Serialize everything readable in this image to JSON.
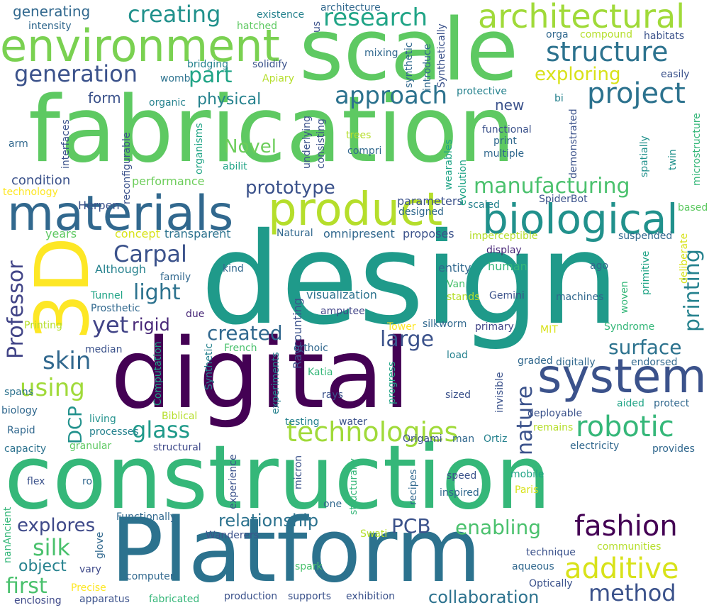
{
  "words": [
    {
      "text": "design",
      "color": "#1f9a8a"
    },
    {
      "text": "fabrication",
      "color": "#5ec962"
    },
    {
      "text": "construction",
      "color": "#35b779"
    },
    {
      "text": "digital",
      "color": "#440154"
    },
    {
      "text": "Platform",
      "color": "#2c728e"
    },
    {
      "text": "scale",
      "color": "#5ec962"
    },
    {
      "text": "environment",
      "color": "#7ad151"
    },
    {
      "text": "materials",
      "color": "#31688e"
    },
    {
      "text": "3D",
      "color": "#fde725"
    },
    {
      "text": "product",
      "color": "#b5de2b"
    },
    {
      "text": "system",
      "color": "#3b528b"
    },
    {
      "text": "biological",
      "color": "#21918c"
    },
    {
      "text": "architectural",
      "color": "#a0da39"
    },
    {
      "text": "technologies",
      "color": "#a0da39"
    },
    {
      "text": "robotic",
      "color": "#35b779"
    },
    {
      "text": "fashion",
      "color": "#440154"
    },
    {
      "text": "additive",
      "color": "#d8e219"
    },
    {
      "text": "structure",
      "color": "#2c728e"
    },
    {
      "text": "project",
      "color": "#2c728e"
    },
    {
      "text": "research",
      "color": "#20a486"
    },
    {
      "text": "approach",
      "color": "#2c728e"
    },
    {
      "text": "manufacturing",
      "color": "#4ac16d"
    },
    {
      "text": "prototype",
      "color": "#3b528b"
    },
    {
      "text": "creating",
      "color": "#21918c"
    },
    {
      "text": "generation",
      "color": "#3b528b"
    },
    {
      "text": "part",
      "color": "#20a486"
    },
    {
      "text": "Carpal",
      "color": "#3b528b"
    },
    {
      "text": "Professor",
      "color": "#414487"
    },
    {
      "text": "printing",
      "color": "#26828e"
    },
    {
      "text": "nature",
      "color": "#3b528b"
    },
    {
      "text": "surface",
      "color": "#2c728e"
    },
    {
      "text": "large",
      "color": "#3b528b"
    },
    {
      "text": "created",
      "color": "#31688e"
    },
    {
      "text": "glass",
      "color": "#1f9a8a"
    },
    {
      "text": "light",
      "color": "#2c728e"
    },
    {
      "text": "yet",
      "color": "#414487"
    },
    {
      "text": "rigid",
      "color": "#482878"
    },
    {
      "text": "skin",
      "color": "#31688e"
    },
    {
      "text": "using",
      "color": "#a0da39"
    },
    {
      "text": "method",
      "color": "#3b528b"
    },
    {
      "text": "silk",
      "color": "#4ac16d"
    },
    {
      "text": "first",
      "color": "#4ac16d"
    },
    {
      "text": "enabling",
      "color": "#4ac16d"
    },
    {
      "text": "explores",
      "color": "#3e4989"
    },
    {
      "text": "relationship",
      "color": "#2c728e"
    },
    {
      "text": "PCB",
      "color": "#3b528b"
    },
    {
      "text": "collaboration",
      "color": "#2c728e"
    },
    {
      "text": "object",
      "color": "#26828e"
    },
    {
      "text": "exploring",
      "color": "#d8e219"
    },
    {
      "text": "Novel",
      "color": "#6ccd5a"
    },
    {
      "text": "physical",
      "color": "#26828e"
    },
    {
      "text": "generating",
      "color": "#31688e"
    },
    {
      "text": "form",
      "color": "#3b528b"
    },
    {
      "text": "new",
      "color": "#3b528b"
    },
    {
      "text": "DCP",
      "color": "#21918c"
    },
    {
      "text": "Herpen",
      "color": "#3b528b"
    },
    {
      "text": "condition",
      "color": "#3b528b"
    },
    {
      "text": "performance",
      "color": "#6ccd5a"
    },
    {
      "text": "technology",
      "color": "#fde725"
    },
    {
      "text": "parameters",
      "color": "#3b528b"
    },
    {
      "text": "designed",
      "color": "#31688e"
    },
    {
      "text": "SpiderBot",
      "color": "#3b528b"
    },
    {
      "text": "based",
      "color": "#5ec962"
    },
    {
      "text": "scaled",
      "color": "#26828e"
    },
    {
      "text": "imperceptible",
      "color": "#b5de2b"
    },
    {
      "text": "suspended",
      "color": "#31688e"
    },
    {
      "text": "years",
      "color": "#5ec962"
    },
    {
      "text": "concept",
      "color": "#d8e219"
    },
    {
      "text": "transparent",
      "color": "#2c728e"
    },
    {
      "text": "Natural",
      "color": "#31688e"
    },
    {
      "text": "omnipresent",
      "color": "#31688e"
    },
    {
      "text": "proposes",
      "color": "#3b528b"
    },
    {
      "text": "display",
      "color": "#482878"
    },
    {
      "text": "Although",
      "color": "#26828e"
    },
    {
      "text": "family",
      "color": "#31688e"
    },
    {
      "text": "kind",
      "color": "#31688e"
    },
    {
      "text": "entity",
      "color": "#31688e"
    },
    {
      "text": "human",
      "color": "#35b779"
    },
    {
      "text": "ago",
      "color": "#31688e"
    },
    {
      "text": "Tunnel",
      "color": "#20a486"
    },
    {
      "text": "Prosthetic",
      "color": "#31688e"
    },
    {
      "text": "due",
      "color": "#482878"
    },
    {
      "text": "visualization",
      "color": "#2c728e"
    },
    {
      "text": "Van",
      "color": "#4ac16d"
    },
    {
      "text": "stands",
      "color": "#b5de2b"
    },
    {
      "text": "Gemini",
      "color": "#3b528b"
    },
    {
      "text": "machines",
      "color": "#31688e"
    },
    {
      "text": "Raycounting",
      "color": "#3b528b"
    },
    {
      "text": "amputee",
      "color": "#414487"
    },
    {
      "text": "Tower",
      "color": "#fde725"
    },
    {
      "text": "silkworm",
      "color": "#31688e"
    },
    {
      "text": "primary",
      "color": "#414487"
    },
    {
      "text": "MIT",
      "color": "#d8e219"
    },
    {
      "text": "Syndrome",
      "color": "#35b779"
    },
    {
      "text": "Printing",
      "color": "#b5de2b"
    },
    {
      "text": "median",
      "color": "#3b528b"
    },
    {
      "text": "French",
      "color": "#4ac16d"
    },
    {
      "text": "orthoic",
      "color": "#31688e"
    },
    {
      "text": "load",
      "color": "#26828e"
    },
    {
      "text": "graded",
      "color": "#31688e"
    },
    {
      "text": "digitally",
      "color": "#31688e"
    },
    {
      "text": "endorsed",
      "color": "#31688e"
    },
    {
      "text": "Katia",
      "color": "#35b779"
    },
    {
      "text": "rays",
      "color": "#3b528b"
    },
    {
      "text": "sized",
      "color": "#3b528b"
    },
    {
      "text": "spans",
      "color": "#2c728e"
    },
    {
      "text": "biology",
      "color": "#31688e"
    },
    {
      "text": "living",
      "color": "#21918c"
    },
    {
      "text": "Biblical",
      "color": "#b5de2b"
    },
    {
      "text": "deployable",
      "color": "#3b528b"
    },
    {
      "text": "aided",
      "color": "#20a486"
    },
    {
      "text": "protect",
      "color": "#31688e"
    },
    {
      "text": "Rapid",
      "color": "#31688e"
    },
    {
      "text": "processes",
      "color": "#26828e"
    },
    {
      "text": "testing",
      "color": "#26828e"
    },
    {
      "text": "water",
      "color": "#3b528b"
    },
    {
      "text": "Origami",
      "color": "#3b528b"
    },
    {
      "text": "man",
      "color": "#31688e"
    },
    {
      "text": "Ortiz",
      "color": "#26828e"
    },
    {
      "text": "remains",
      "color": "#b5de2b"
    },
    {
      "text": "capacity",
      "color": "#2c728e"
    },
    {
      "text": "granular",
      "color": "#5ec962"
    },
    {
      "text": "structural",
      "color": "#3e4989"
    },
    {
      "text": "electricity",
      "color": "#31688e"
    },
    {
      "text": "provides",
      "color": "#31688e"
    },
    {
      "text": "flex",
      "color": "#3b528b"
    },
    {
      "text": "ro",
      "color": "#31688e"
    },
    {
      "text": "speed",
      "color": "#3b528b"
    },
    {
      "text": "mobile",
      "color": "#20a486"
    },
    {
      "text": "inspired",
      "color": "#31688e"
    },
    {
      "text": "Paris",
      "color": "#d8e219"
    },
    {
      "text": "one",
      "color": "#31688e"
    },
    {
      "text": "Functionally",
      "color": "#31688e"
    },
    {
      "text": "Wanderers",
      "color": "#3b528b"
    },
    {
      "text": "Swati",
      "color": "#b5de2b"
    },
    {
      "text": "technique",
      "color": "#3b528b"
    },
    {
      "text": "communities",
      "color": "#b5de2b"
    },
    {
      "text": "vary",
      "color": "#3e4989"
    },
    {
      "text": "computer",
      "color": "#31688e"
    },
    {
      "text": "spark",
      "color": "#4ac16d"
    },
    {
      "text": "aqueous",
      "color": "#31688e"
    },
    {
      "text": "Optically",
      "color": "#3b528b"
    },
    {
      "text": "Precise",
      "color": "#fde725"
    },
    {
      "text": "apparatus",
      "color": "#3b528b"
    },
    {
      "text": "fabricated",
      "color": "#35b779"
    },
    {
      "text": "production",
      "color": "#3b528b"
    },
    {
      "text": "supports",
      "color": "#3b528b"
    },
    {
      "text": "exhibition",
      "color": "#3b528b"
    },
    {
      "text": "enclosing",
      "color": "#3e4989"
    },
    {
      "text": "intensity",
      "color": "#31688e"
    },
    {
      "text": "existence",
      "color": "#26828e"
    },
    {
      "text": "hatched",
      "color": "#5ec962"
    },
    {
      "text": "architecture",
      "color": "#31688e"
    },
    {
      "text": "us",
      "color": "#3b528b"
    },
    {
      "text": "Synthetically",
      "color": "#3b528b"
    },
    {
      "text": "orga",
      "color": "#31688e"
    },
    {
      "text": "compound",
      "color": "#b5de2b"
    },
    {
      "text": "habitats",
      "color": "#3b528b"
    },
    {
      "text": "bridging",
      "color": "#26828e"
    },
    {
      "text": "solidify",
      "color": "#3b528b"
    },
    {
      "text": "womb",
      "color": "#2c728e"
    },
    {
      "text": "Apiary",
      "color": "#b5de2b"
    },
    {
      "text": "mixing",
      "color": "#31688e"
    },
    {
      "text": "introduce",
      "color": "#31688e"
    },
    {
      "text": "synthetic",
      "color": "#31688e"
    },
    {
      "text": "easily",
      "color": "#3b528b"
    },
    {
      "text": "protective",
      "color": "#26828e"
    },
    {
      "text": "bi",
      "color": "#26828e"
    },
    {
      "text": "organic",
      "color": "#26828e"
    },
    {
      "text": "interfaces",
      "color": "#3b528b"
    },
    {
      "text": "reconfigurable",
      "color": "#3b528b"
    },
    {
      "text": "organisms",
      "color": "#20a486"
    },
    {
      "text": "arm",
      "color": "#31688e"
    },
    {
      "text": "underlying",
      "color": "#3b528b"
    },
    {
      "text": "consisting",
      "color": "#3b528b"
    },
    {
      "text": "trees",
      "color": "#b5de2b"
    },
    {
      "text": "compri",
      "color": "#31688e"
    },
    {
      "text": "functional",
      "color": "#3b528b"
    },
    {
      "text": "print",
      "color": "#31688e"
    },
    {
      "text": "multiple",
      "color": "#31688e"
    },
    {
      "text": "demonstrated",
      "color": "#3b528b"
    },
    {
      "text": "spatially",
      "color": "#21918c"
    },
    {
      "text": "microstructure",
      "color": "#35b779"
    },
    {
      "text": "twin",
      "color": "#21918c"
    },
    {
      "text": "abilit",
      "color": "#20a486"
    },
    {
      "text": "wearables",
      "color": "#20a486"
    },
    {
      "text": "evolution",
      "color": "#20a486"
    },
    {
      "text": "deliberate",
      "color": "#d8e219"
    },
    {
      "text": "primitive",
      "color": "#20a486"
    },
    {
      "text": "woven",
      "color": "#35b779"
    },
    {
      "text": "Computation",
      "color": "#20a486"
    },
    {
      "text": "Synthetic",
      "color": "#26828e"
    },
    {
      "text": "experiments",
      "color": "#26828e"
    },
    {
      "text": "progress",
      "color": "#20a486"
    },
    {
      "text": "invisible",
      "color": "#3b528b"
    },
    {
      "text": "micron",
      "color": "#3b528b"
    },
    {
      "text": "experience",
      "color": "#3b528b"
    },
    {
      "text": "structurally",
      "color": "#35b779"
    },
    {
      "text": "recipes",
      "color": "#31688e"
    },
    {
      "text": "glove",
      "color": "#31688e"
    },
    {
      "text": "nanAncient",
      "color": "#35b779"
    }
  ]
}
